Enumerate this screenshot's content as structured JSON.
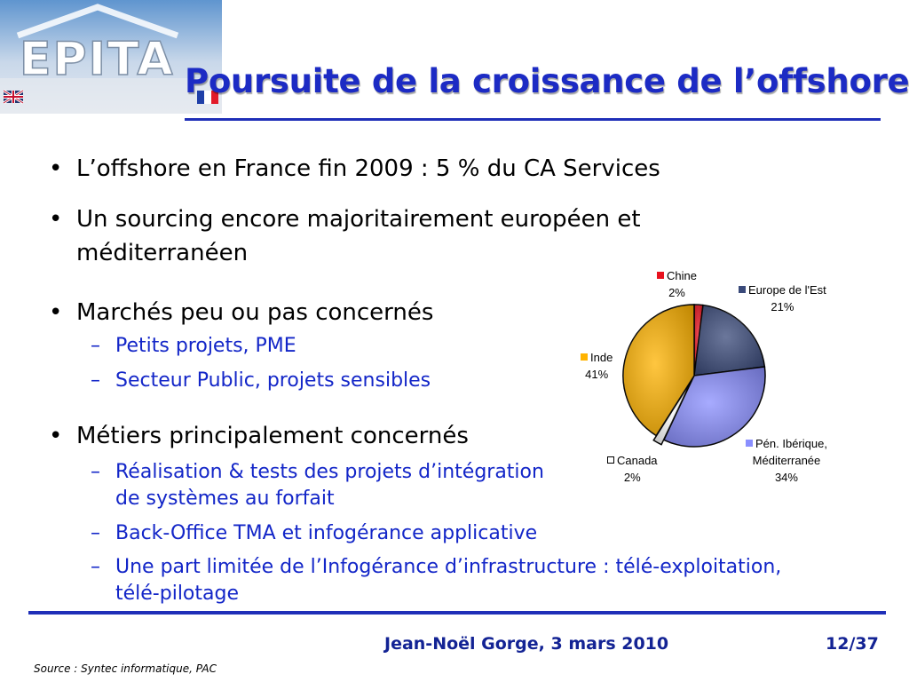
{
  "slide": {
    "title": "Poursuite de la croissance de l’offshore",
    "logo_text": "EPITA",
    "bullets": [
      "L’offshore en France fin 2009 : 5 % du CA Services",
      "Un sourcing encore majoritairement européen et",
      "méditerranéen",
      "Marchés peu ou pas concernés",
      "Métiers principalement concernés"
    ],
    "subbullets": [
      "Petits projets, PME",
      "Secteur Public, projets sensibles",
      "Réalisation & tests des projets d’intégration",
      "de systèmes au forfait",
      "Back-Office TMA et infogérance applicative",
      "Une part limitée de l’Infogérance d’infrastructure : télé-exploitation,",
      "télé-pilotage"
    ],
    "bullet_char": "•",
    "dash_char": "–",
    "footer_author": "Jean-Noël Gorge, 3 mars 2010",
    "page_number": "12/37",
    "source": "Source : Syntec informatique, PAC"
  },
  "chart_data": {
    "type": "pie",
    "slices": [
      {
        "name": "Chine",
        "value": 2,
        "label": "2%",
        "color": "#e8121e"
      },
      {
        "name": "Europe de l'Est",
        "value": 21,
        "label": "21%",
        "color": "#3a4a7a"
      },
      {
        "name": "Pén. Ibérique, Méditerranée",
        "name_line1": "Pén. Ibérique,",
        "name_line2": "Méditerranée",
        "value": 34,
        "label": "34%",
        "color": "#8a8fff"
      },
      {
        "name": "Canada",
        "value": 2,
        "label": "2%",
        "color": "#ffffff"
      },
      {
        "name": "Inde",
        "value": 41,
        "label": "41%",
        "color": "#ffb300"
      }
    ],
    "start_angle_deg": 0,
    "direction": "clockwise"
  }
}
